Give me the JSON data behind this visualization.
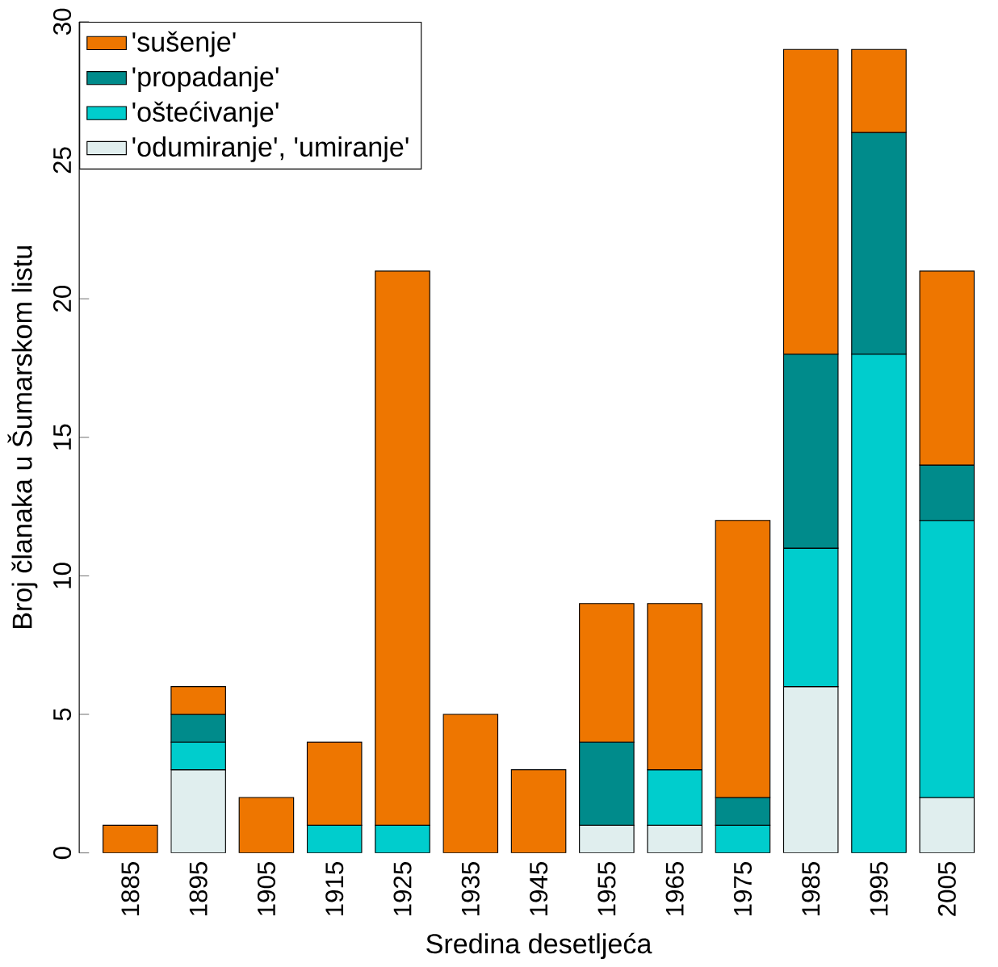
{
  "chart_data": {
    "type": "bar",
    "stacked": true,
    "xlabel": "Sredina desetljeća",
    "ylabel": "Broj članaka u Šumarskom listu",
    "categories": [
      "1885",
      "1895",
      "1905",
      "1915",
      "1925",
      "1935",
      "1945",
      "1955",
      "1965",
      "1975",
      "1985",
      "1995",
      "2005"
    ],
    "series": [
      {
        "name": "'odumiranje', 'umiranje'",
        "color": "#e0eeee",
        "values": [
          0,
          3,
          0,
          0,
          0,
          0,
          0,
          1,
          1,
          0,
          6,
          0,
          2
        ]
      },
      {
        "name": "'oštećivanje'",
        "color": "#00cdcd",
        "values": [
          0,
          1,
          0,
          1,
          1,
          0,
          0,
          0,
          2,
          1,
          5,
          18,
          10
        ]
      },
      {
        "name": "'propadanje'",
        "color": "#008b8b",
        "values": [
          0,
          1,
          0,
          0,
          0,
          0,
          0,
          3,
          0,
          1,
          7,
          8,
          2
        ]
      },
      {
        "name": "'sušenje'",
        "color": "#ee7600",
        "values": [
          1,
          1,
          2,
          3,
          20,
          5,
          3,
          5,
          6,
          10,
          11,
          3,
          7
        ]
      }
    ],
    "ylim": [
      0,
      30
    ],
    "yticks": [
      0,
      5,
      10,
      15,
      20,
      25,
      30
    ],
    "legend": "top left"
  }
}
